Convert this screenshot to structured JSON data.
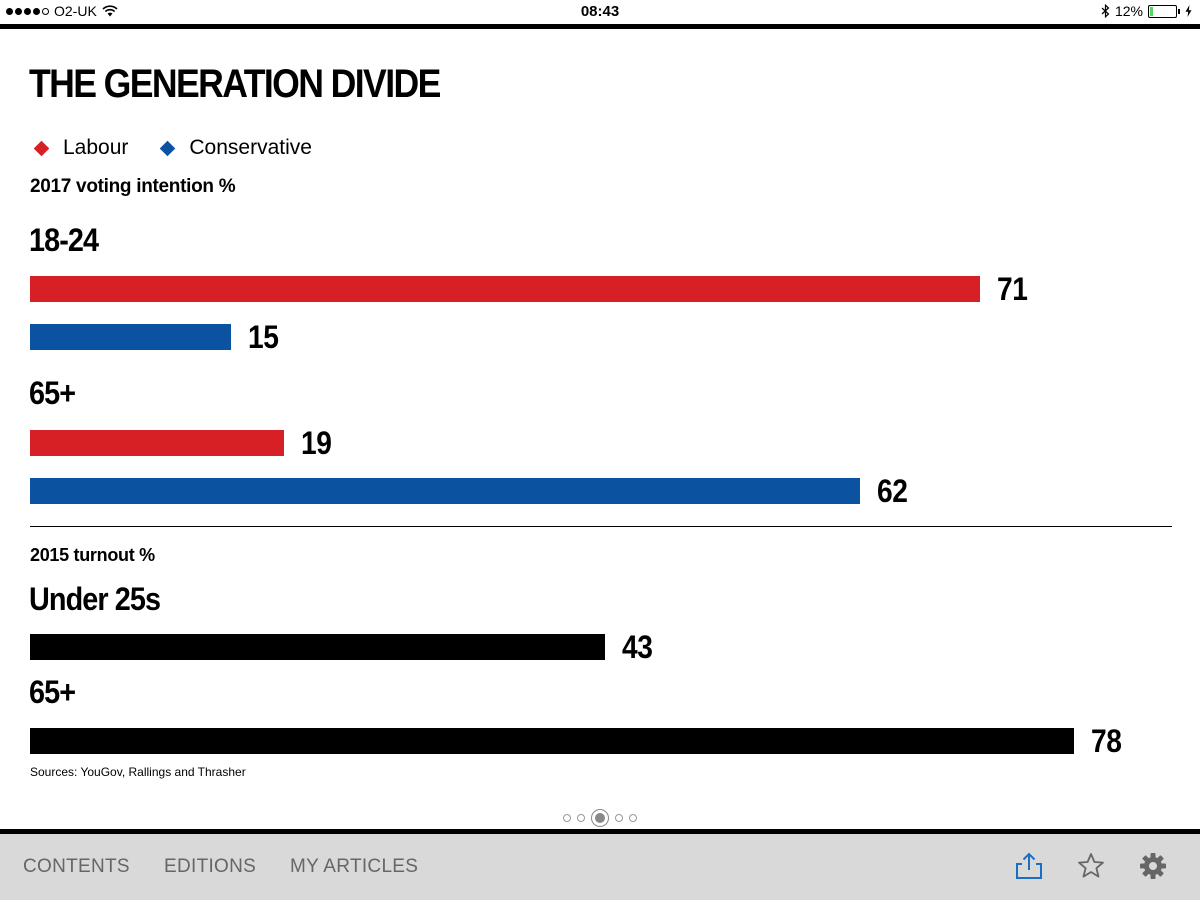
{
  "status_bar": {
    "carrier": "O2-UK",
    "time": "08:43",
    "battery_percent": "12%",
    "battery_level": 0.12,
    "signal_strength": 4
  },
  "graphic": {
    "title": "THE GENERATION DIVIDE",
    "legend": [
      {
        "label": "Labour",
        "color": "#d71f26"
      },
      {
        "label": "Conservative",
        "color": "#0b53a0"
      }
    ],
    "voting_subhead": "2017 voting intention %",
    "turnout_subhead": "2015 turnout %",
    "source": "Sources: YouGov, Rallings and Thrasher"
  },
  "chart_data": [
    {
      "type": "bar",
      "orientation": "horizontal",
      "title": "2017 voting intention %",
      "categories": [
        "18-24",
        "65+"
      ],
      "series": [
        {
          "name": "Labour",
          "color": "#d71f26",
          "values": [
            71,
            19
          ]
        },
        {
          "name": "Conservative",
          "color": "#0b53a0",
          "values": [
            15,
            62
          ]
        }
      ],
      "xlim": [
        0,
        80
      ],
      "grid": false,
      "legend": "top-left"
    },
    {
      "type": "bar",
      "orientation": "horizontal",
      "title": "2015 turnout %",
      "categories": [
        "Under 25s",
        "65+"
      ],
      "values": [
        43,
        78
      ],
      "color": "#000000",
      "xlim": [
        0,
        80
      ],
      "grid": false
    }
  ],
  "page_indicator": {
    "count": 5,
    "current": 3
  },
  "bottom_nav": {
    "contents": "CONTENTS",
    "editions": "EDITIONS",
    "my_articles": "MY ARTICLES",
    "accent_color": "#1a6fc4"
  }
}
